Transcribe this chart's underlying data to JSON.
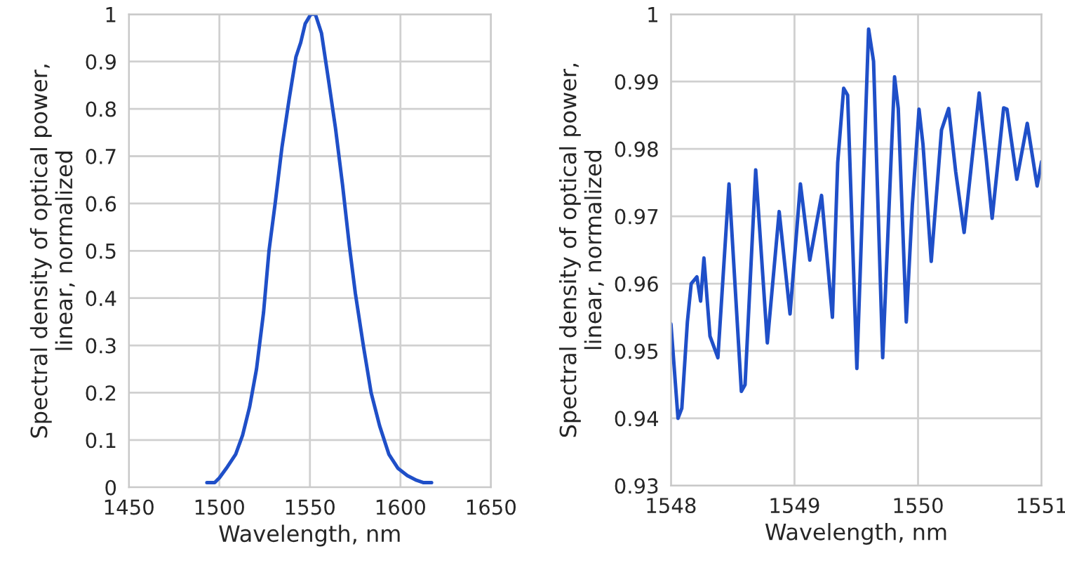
{
  "chart_data": [
    {
      "type": "line",
      "xlabel": "Wavelength, nm",
      "ylabel": "Spectral density of optical power,\nlinear, normalized",
      "xlim": [
        1450,
        1650
      ],
      "xticks": [
        1450,
        1500,
        1550,
        1600,
        1650
      ],
      "ylim": [
        0,
        1
      ],
      "yticks": [
        0,
        0.1,
        0.2,
        0.3,
        0.4,
        0.5,
        0.6,
        0.7,
        0.8,
        0.9,
        1
      ],
      "grid": true,
      "marker": "none",
      "line_style": "solid",
      "series": [
        {
          "color": "#1f4fc8",
          "x": [
            1493.1,
            1497.4,
            1500,
            1503.8,
            1509,
            1512.8,
            1516.7,
            1520.5,
            1524.4,
            1527.4,
            1530.8,
            1534.6,
            1538.5,
            1542.3,
            1544.9,
            1547.4,
            1550.5,
            1553,
            1556.4,
            1560.3,
            1564.1,
            1568,
            1571.8,
            1575.1,
            1579.5,
            1583.8,
            1588.5,
            1593.6,
            1598.7,
            1603.8,
            1608.9,
            1612.8,
            1617.2
          ],
          "values": [
            0.01,
            0.01,
            0.02,
            0.04,
            0.07,
            0.11,
            0.17,
            0.25,
            0.37,
            0.5,
            0.6,
            0.72,
            0.82,
            0.91,
            0.94,
            0.98,
            1.0,
            1.0,
            0.96,
            0.86,
            0.76,
            0.64,
            0.51,
            0.41,
            0.3,
            0.2,
            0.13,
            0.07,
            0.04,
            0.025,
            0.015,
            0.01,
            0.01
          ]
        }
      ]
    },
    {
      "type": "line",
      "xlabel": "Wavelength, nm",
      "ylabel": "Spectral density of optical power,\nlinear, normalized",
      "xlim": [
        1548,
        1551
      ],
      "xticks": [
        1548,
        1549,
        1550,
        1551
      ],
      "ylim": [
        0.93,
        1
      ],
      "yticks": [
        0.93,
        0.94,
        0.95,
        0.96,
        0.97,
        0.98,
        0.99,
        1
      ],
      "grid": true,
      "marker": "none",
      "line_style": "solid",
      "series": [
        {
          "color": "#1f4fc8",
          "x": [
            1548.0,
            1548.057,
            1548.088,
            1548.133,
            1548.164,
            1548.21,
            1548.24,
            1548.267,
            1548.316,
            1548.38,
            1548.47,
            1548.57,
            1548.6,
            1548.686,
            1548.78,
            1548.876,
            1548.964,
            1549.048,
            1549.124,
            1549.219,
            1549.307,
            1549.35,
            1549.398,
            1549.43,
            1549.505,
            1549.6,
            1549.64,
            1549.714,
            1549.81,
            1549.84,
            1549.905,
            1549.954,
            1550.008,
            1550.04,
            1550.107,
            1550.19,
            1550.248,
            1550.305,
            1550.373,
            1550.495,
            1550.552,
            1550.6,
            1550.693,
            1550.72,
            1550.8,
            1550.884,
            1550.964,
            1551.0
          ],
          "values": [
            0.954,
            0.94,
            0.9415,
            0.9543,
            0.96,
            0.961,
            0.9574,
            0.9638,
            0.9522,
            0.949,
            0.9748,
            0.944,
            0.945,
            0.9769,
            0.9512,
            0.9707,
            0.9555,
            0.9748,
            0.9635,
            0.9731,
            0.955,
            0.978,
            0.989,
            0.988,
            0.9474,
            0.9978,
            0.993,
            0.949,
            0.9907,
            0.986,
            0.9543,
            0.9717,
            0.9859,
            0.9807,
            0.9633,
            0.9828,
            0.986,
            0.9766,
            0.9676,
            0.9883,
            0.9786,
            0.9697,
            0.9861,
            0.9859,
            0.9755,
            0.9838,
            0.9745,
            0.9781
          ]
        }
      ]
    }
  ]
}
